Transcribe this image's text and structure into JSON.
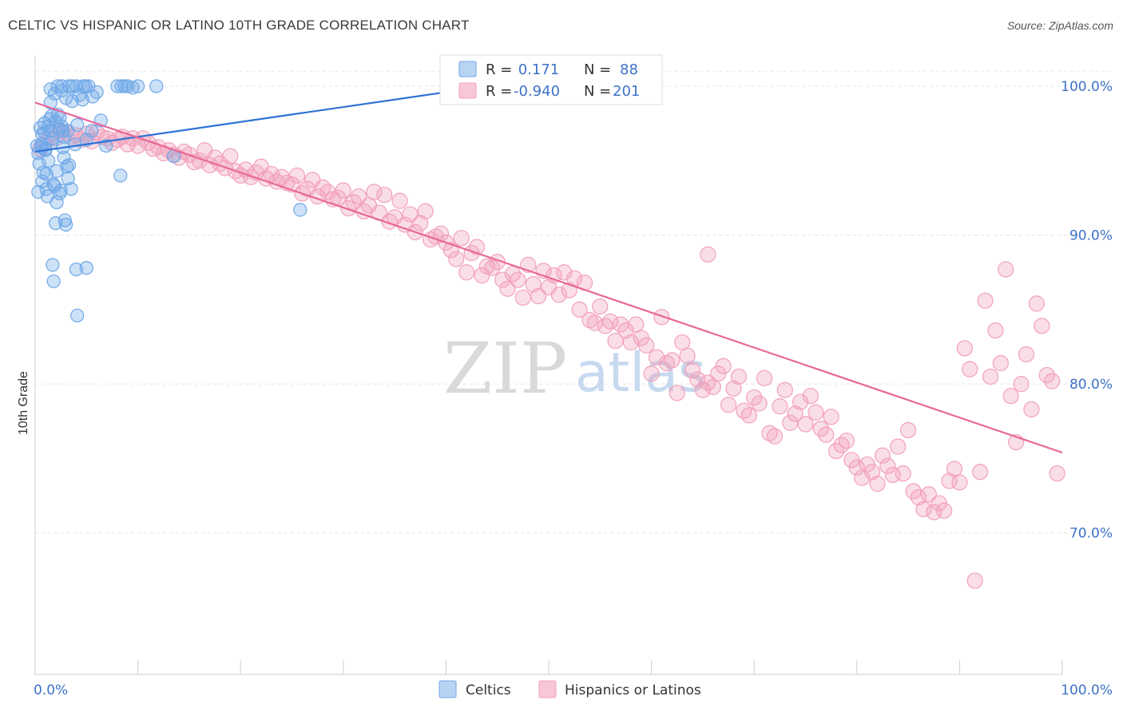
{
  "title": "CELTIC VS HISPANIC OR LATINO 10TH GRADE CORRELATION CHART",
  "source": "Source: ZipAtlas.com",
  "watermark": {
    "zip": "ZIP",
    "atlas": "atlas"
  },
  "colors": {
    "celtic": "#6fa8e8",
    "celtic_line": "#2f72d6",
    "hispanic": "#f2a0bb",
    "hispanic_line": "#e8679a",
    "tick_text": "#3d72c8"
  },
  "legend": {
    "rows": [
      {
        "r_label": "R =",
        "r_value": " 0.171",
        "n_label": "N =",
        "n_value": "88"
      },
      {
        "r_label": "R =",
        "r_value": "-0.940",
        "n_label": "N =",
        "n_value": "201"
      }
    ]
  },
  "bottom_legend": [
    "Celtics",
    "Hispanics or Latinos"
  ],
  "chart_data": {
    "type": "scatter",
    "title": "CELTIC VS HISPANIC OR LATINO 10TH GRADE CORRELATION CHART",
    "xlabel": "",
    "ylabel": "10th Grade",
    "xlim": [
      0,
      100
    ],
    "ylim": [
      60.5,
      101.5
    ],
    "x_tick_labels": [
      "0.0%",
      "100.0%"
    ],
    "y_ticks": [
      70,
      80,
      90,
      100
    ],
    "y_tick_labels": [
      "70.0%",
      "80.0%",
      "90.0%",
      "100.0%"
    ],
    "grid": true,
    "legend_position": "top-center",
    "series": [
      {
        "name": "Celtics",
        "R": 0.171,
        "N": 88,
        "trend": {
          "x": [
            0,
            48
          ],
          "y": [
            95.6,
            100.4
          ]
        },
        "points": [
          [
            0.2,
            96.0
          ],
          [
            0.3,
            95.5
          ],
          [
            0.4,
            94.8
          ],
          [
            0.5,
            97.2
          ],
          [
            0.6,
            96.1
          ],
          [
            0.7,
            93.6
          ],
          [
            0.8,
            94.2
          ],
          [
            0.9,
            96.9
          ],
          [
            1.0,
            95.8
          ],
          [
            1.1,
            93.1
          ],
          [
            1.2,
            92.6
          ],
          [
            1.3,
            95.0
          ],
          [
            1.4,
            97.8
          ],
          [
            1.5,
            98.9
          ],
          [
            1.6,
            98.0
          ],
          [
            1.7,
            96.5
          ],
          [
            1.8,
            93.4
          ],
          [
            1.9,
            93.3
          ],
          [
            2.0,
            90.8
          ],
          [
            2.1,
            94.3
          ],
          [
            2.2,
            98.1
          ],
          [
            2.3,
            97.1
          ],
          [
            2.4,
            92.8
          ],
          [
            2.5,
            93.0
          ],
          [
            2.6,
            97.3
          ],
          [
            2.7,
            97.0
          ],
          [
            2.8,
            95.2
          ],
          [
            2.9,
            91.0
          ],
          [
            3.0,
            90.7
          ],
          [
            3.1,
            94.6
          ],
          [
            3.2,
            93.8
          ],
          [
            3.3,
            94.7
          ],
          [
            2.2,
            100.0
          ],
          [
            2.6,
            100.0
          ],
          [
            3.0,
            99.2
          ],
          [
            3.3,
            100.0
          ],
          [
            3.6,
            99.0
          ],
          [
            4.0,
            100.0
          ],
          [
            4.3,
            99.4
          ],
          [
            4.6,
            99.1
          ],
          [
            4.9,
            100.0
          ],
          [
            5.2,
            100.0
          ],
          [
            5.6,
            99.3
          ],
          [
            8.0,
            100.0
          ],
          [
            8.4,
            100.0
          ],
          [
            9.0,
            100.0
          ],
          [
            10.0,
            100.0
          ],
          [
            11.8,
            100.0
          ],
          [
            1.5,
            99.8
          ],
          [
            1.9,
            99.5
          ],
          [
            2.6,
            99.7
          ],
          [
            3.6,
            100.0
          ],
          [
            4.7,
            100.0
          ],
          [
            8.7,
            100.0
          ],
          [
            0.9,
            97.5
          ],
          [
            1.3,
            97.3
          ],
          [
            2.0,
            97.6
          ],
          [
            2.4,
            97.9
          ],
          [
            3.2,
            97.0
          ],
          [
            4.1,
            97.4
          ],
          [
            5.5,
            97.0
          ],
          [
            6.4,
            97.7
          ],
          [
            0.6,
            95.9
          ],
          [
            1.0,
            95.7
          ],
          [
            1.6,
            96.2
          ],
          [
            2.8,
            96.6
          ],
          [
            3.9,
            96.1
          ],
          [
            5.0,
            96.4
          ],
          [
            6.9,
            96.0
          ],
          [
            13.5,
            95.3
          ],
          [
            8.3,
            94.0
          ],
          [
            25.8,
            91.7
          ],
          [
            1.7,
            88.0
          ],
          [
            4.0,
            87.7
          ],
          [
            5.0,
            87.8
          ],
          [
            1.8,
            86.9
          ],
          [
            4.1,
            84.6
          ],
          [
            0.3,
            92.9
          ],
          [
            1.1,
            94.1
          ],
          [
            2.1,
            92.2
          ],
          [
            0.7,
            96.8
          ],
          [
            1.5,
            97.0
          ],
          [
            2.7,
            95.9
          ],
          [
            3.5,
            93.1
          ],
          [
            6.0,
            99.6
          ],
          [
            9.5,
            99.9
          ]
        ]
      },
      {
        "name": "Hispanics or Latinos",
        "R": -0.94,
        "N": 201,
        "trend": {
          "x": [
            0,
            100
          ],
          "y": [
            98.9,
            75.4
          ]
        },
        "points": [
          [
            0.5,
            95.8
          ],
          [
            1.0,
            96.2
          ],
          [
            1.5,
            96.8
          ],
          [
            2.0,
            96.5
          ],
          [
            2.5,
            97.0
          ],
          [
            3.0,
            96.9
          ],
          [
            3.5,
            96.6
          ],
          [
            4.0,
            96.7
          ],
          [
            4.5,
            96.4
          ],
          [
            5.0,
            96.8
          ],
          [
            5.5,
            96.3
          ],
          [
            6.0,
            96.9
          ],
          [
            6.5,
            96.6
          ],
          [
            7.0,
            96.5
          ],
          [
            7.5,
            96.2
          ],
          [
            8.0,
            96.4
          ],
          [
            8.5,
            96.6
          ],
          [
            9.0,
            96.1
          ],
          [
            9.5,
            96.5
          ],
          [
            10.0,
            96.0
          ],
          [
            10.5,
            96.5
          ],
          [
            11.0,
            96.2
          ],
          [
            11.5,
            95.8
          ],
          [
            12.0,
            95.9
          ],
          [
            12.5,
            95.5
          ],
          [
            13.0,
            95.7
          ],
          [
            13.5,
            95.4
          ],
          [
            14.0,
            95.2
          ],
          [
            14.5,
            95.6
          ],
          [
            15.0,
            95.4
          ],
          [
            15.5,
            94.9
          ],
          [
            16.0,
            95.0
          ],
          [
            16.5,
            95.7
          ],
          [
            17.0,
            94.7
          ],
          [
            17.5,
            95.2
          ],
          [
            18.0,
            94.8
          ],
          [
            18.5,
            94.5
          ],
          [
            19.0,
            95.3
          ],
          [
            19.5,
            94.3
          ],
          [
            20.0,
            94.0
          ],
          [
            20.5,
            94.4
          ],
          [
            21.0,
            93.9
          ],
          [
            21.5,
            94.2
          ],
          [
            22.0,
            94.6
          ],
          [
            22.5,
            93.8
          ],
          [
            23.0,
            94.1
          ],
          [
            23.5,
            93.6
          ],
          [
            24.0,
            93.9
          ],
          [
            24.5,
            93.5
          ],
          [
            25.0,
            93.4
          ],
          [
            25.5,
            94.0
          ],
          [
            26.0,
            92.8
          ],
          [
            26.5,
            93.1
          ],
          [
            27.0,
            93.7
          ],
          [
            27.5,
            92.6
          ],
          [
            28.0,
            93.2
          ],
          [
            28.5,
            92.9
          ],
          [
            29.0,
            92.4
          ],
          [
            29.5,
            92.5
          ],
          [
            30.0,
            93.0
          ],
          [
            30.5,
            91.8
          ],
          [
            31.0,
            92.2
          ],
          [
            31.5,
            92.6
          ],
          [
            32.0,
            91.6
          ],
          [
            32.5,
            92.0
          ],
          [
            33.0,
            92.9
          ],
          [
            33.5,
            91.5
          ],
          [
            34.0,
            92.7
          ],
          [
            34.5,
            90.9
          ],
          [
            35.0,
            91.2
          ],
          [
            35.5,
            92.3
          ],
          [
            36.0,
            90.7
          ],
          [
            36.5,
            91.4
          ],
          [
            37.0,
            90.2
          ],
          [
            37.5,
            90.8
          ],
          [
            38.0,
            91.6
          ],
          [
            38.5,
            89.7
          ],
          [
            39.0,
            89.9
          ],
          [
            39.5,
            90.1
          ],
          [
            40.0,
            89.5
          ],
          [
            40.5,
            89.0
          ],
          [
            41.0,
            88.4
          ],
          [
            41.5,
            89.8
          ],
          [
            42.0,
            87.5
          ],
          [
            42.5,
            88.8
          ],
          [
            43.0,
            89.2
          ],
          [
            43.5,
            87.3
          ],
          [
            44.0,
            87.9
          ],
          [
            44.5,
            87.8
          ],
          [
            45.0,
            88.2
          ],
          [
            45.5,
            87.0
          ],
          [
            46.0,
            86.4
          ],
          [
            46.5,
            87.4
          ],
          [
            47.0,
            87.0
          ],
          [
            47.5,
            85.8
          ],
          [
            48.0,
            88.0
          ],
          [
            48.5,
            86.7
          ],
          [
            49.0,
            85.9
          ],
          [
            49.5,
            87.6
          ],
          [
            50.0,
            86.5
          ],
          [
            50.5,
            87.3
          ],
          [
            51.0,
            86.0
          ],
          [
            51.5,
            87.5
          ],
          [
            52.0,
            86.3
          ],
          [
            52.5,
            87.1
          ],
          [
            53.0,
            85.0
          ],
          [
            53.5,
            86.8
          ],
          [
            54.0,
            84.3
          ],
          [
            54.5,
            84.1
          ],
          [
            55.0,
            85.2
          ],
          [
            55.5,
            83.9
          ],
          [
            56.0,
            84.2
          ],
          [
            56.5,
            82.9
          ],
          [
            57.0,
            84.0
          ],
          [
            57.5,
            83.6
          ],
          [
            58.0,
            82.8
          ],
          [
            58.5,
            84.0
          ],
          [
            59.0,
            83.1
          ],
          [
            59.5,
            82.6
          ],
          [
            60.0,
            80.7
          ],
          [
            60.5,
            81.8
          ],
          [
            61.0,
            84.5
          ],
          [
            61.5,
            81.4
          ],
          [
            62.0,
            81.6
          ],
          [
            62.5,
            79.4
          ],
          [
            63.0,
            82.8
          ],
          [
            63.5,
            81.9
          ],
          [
            64.0,
            80.9
          ],
          [
            64.5,
            80.3
          ],
          [
            65.0,
            79.6
          ],
          [
            65.5,
            80.1
          ],
          [
            66.0,
            79.8
          ],
          [
            66.5,
            80.7
          ],
          [
            67.0,
            81.2
          ],
          [
            67.5,
            78.6
          ],
          [
            68.0,
            79.7
          ],
          [
            68.5,
            80.5
          ],
          [
            69.0,
            78.2
          ],
          [
            69.5,
            77.9
          ],
          [
            70.0,
            79.1
          ],
          [
            70.5,
            78.7
          ],
          [
            71.0,
            80.4
          ],
          [
            71.5,
            76.7
          ],
          [
            72.0,
            76.5
          ],
          [
            72.5,
            78.5
          ],
          [
            73.0,
            79.6
          ],
          [
            73.5,
            77.4
          ],
          [
            74.0,
            78.0
          ],
          [
            74.5,
            78.8
          ],
          [
            75.0,
            77.3
          ],
          [
            75.5,
            79.2
          ],
          [
            76.0,
            78.1
          ],
          [
            76.5,
            77.0
          ],
          [
            77.0,
            76.6
          ],
          [
            77.5,
            77.8
          ],
          [
            78.0,
            75.5
          ],
          [
            78.5,
            75.9
          ],
          [
            79.0,
            76.2
          ],
          [
            79.5,
            74.9
          ],
          [
            80.0,
            74.4
          ],
          [
            80.5,
            73.7
          ],
          [
            81.0,
            74.6
          ],
          [
            81.5,
            74.1
          ],
          [
            82.0,
            73.3
          ],
          [
            82.5,
            75.2
          ],
          [
            83.0,
            74.5
          ],
          [
            83.5,
            73.9
          ],
          [
            84.0,
            75.8
          ],
          [
            84.5,
            74.0
          ],
          [
            85.0,
            76.9
          ],
          [
            85.5,
            72.8
          ],
          [
            86.0,
            72.4
          ],
          [
            86.5,
            71.6
          ],
          [
            87.0,
            72.6
          ],
          [
            87.5,
            71.4
          ],
          [
            88.0,
            72.0
          ],
          [
            88.5,
            71.5
          ],
          [
            89.0,
            73.5
          ],
          [
            89.5,
            74.3
          ],
          [
            90.0,
            73.4
          ],
          [
            90.5,
            82.4
          ],
          [
            91.0,
            81.0
          ],
          [
            91.5,
            66.8
          ],
          [
            92.0,
            74.1
          ],
          [
            92.5,
            85.6
          ],
          [
            93.0,
            80.5
          ],
          [
            93.5,
            83.6
          ],
          [
            94.0,
            81.4
          ],
          [
            94.5,
            87.7
          ],
          [
            95.0,
            79.2
          ],
          [
            95.5,
            76.1
          ],
          [
            96.0,
            80.0
          ],
          [
            96.5,
            82.0
          ],
          [
            97.0,
            78.3
          ],
          [
            97.5,
            85.4
          ],
          [
            98.0,
            83.9
          ],
          [
            98.5,
            80.6
          ],
          [
            99.0,
            80.2
          ],
          [
            99.5,
            74.0
          ],
          [
            65.5,
            88.7
          ]
        ]
      }
    ]
  }
}
